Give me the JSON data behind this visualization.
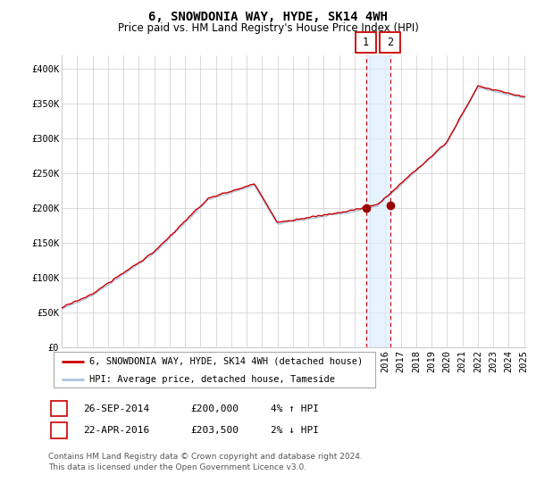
{
  "title": "6, SNOWDONIA WAY, HYDE, SK14 4WH",
  "subtitle": "Price paid vs. HM Land Registry's House Price Index (HPI)",
  "ylim": [
    0,
    420000
  ],
  "yticks": [
    0,
    50000,
    100000,
    150000,
    200000,
    250000,
    300000,
    350000,
    400000
  ],
  "ytick_labels": [
    "£0",
    "£50K",
    "£100K",
    "£150K",
    "£200K",
    "£250K",
    "£300K",
    "£350K",
    "£400K"
  ],
  "hpi_color": "#a8c4e0",
  "price_color": "#cc0000",
  "marker_color": "#990000",
  "vline_color": "#cc0000",
  "vspan_color": "#ddeeff",
  "grid_color": "#cccccc",
  "bg_color": "#ffffff",
  "purchase1_date": 2014.74,
  "purchase1_price": 200000,
  "purchase2_date": 2016.31,
  "purchase2_price": 203500,
  "legend_line1": "6, SNOWDONIA WAY, HYDE, SK14 4WH (detached house)",
  "legend_line2": "HPI: Average price, detached house, Tameside",
  "table_row1": [
    "1",
    "26-SEP-2014",
    "£200,000",
    "4% ↑ HPI"
  ],
  "table_row2": [
    "2",
    "22-APR-2016",
    "£203,500",
    "2% ↓ HPI"
  ],
  "footnote": "Contains HM Land Registry data © Crown copyright and database right 2024.\nThis data is licensed under the Open Government Licence v3.0.",
  "title_fontsize": 10,
  "subtitle_fontsize": 8.5,
  "tick_fontsize": 7.5,
  "legend_fontsize": 7.5,
  "table_fontsize": 8,
  "footnote_fontsize": 6.5
}
